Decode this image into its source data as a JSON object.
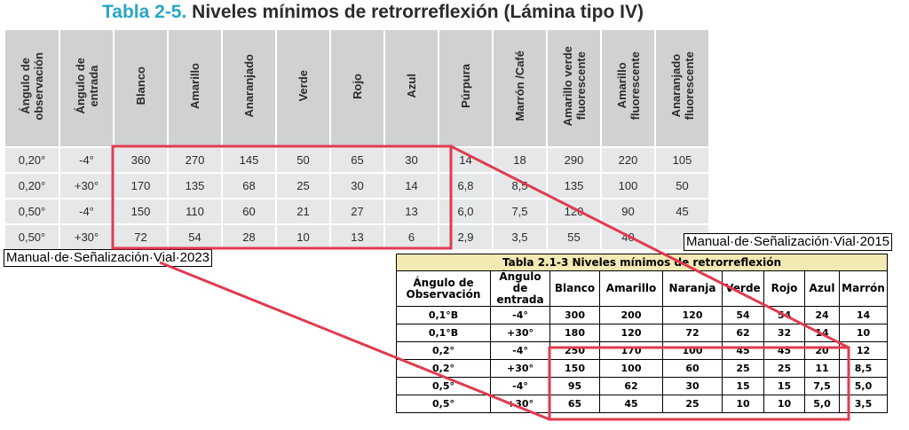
{
  "title": {
    "number": "Tabla 2-5.",
    "text": "Niveles mínimos de retrorreflexión (Lámina tipo IV)"
  },
  "table_2023": {
    "headers": [
      "Ángulo de\nobservación",
      "Ángulo de\nentrada",
      "Blanco",
      "Amarillo",
      "Anaranjado",
      "Verde",
      "Rojo",
      "Azul",
      "Púrpura",
      "Marrón /Café",
      "Amarillo verde\nfluorescente",
      "Amarillo\nfluorescente",
      "Anaranjado\nfluorescente"
    ],
    "rows": [
      [
        "0,20°",
        "-4°",
        "360",
        "270",
        "145",
        "50",
        "65",
        "30",
        "14",
        "18",
        "290",
        "220",
        "105"
      ],
      [
        "0,20°",
        "+30°",
        "170",
        "135",
        "68",
        "25",
        "30",
        "14",
        "6,8",
        "8,5",
        "135",
        "100",
        "50"
      ],
      [
        "0,50°",
        "-4°",
        "150",
        "110",
        "60",
        "21",
        "27",
        "13",
        "6,0",
        "7,5",
        "120",
        "90",
        "45"
      ],
      [
        "0,50°",
        "+30°",
        "72",
        "54",
        "28",
        "10",
        "13",
        "6",
        "2,9",
        "3,5",
        "55",
        "40",
        ""
      ]
    ]
  },
  "label_2023": "Manual·de·Señalización·Vial·2023",
  "label_2015": "Manual·de·Señalización·Vial·2015",
  "table_2015": {
    "caption": "Tabla 2.1-3 Niveles mínimos de retrorreflexión",
    "headers": [
      "Ángulo de\nObservación",
      "Ángulo\nde\nentrada",
      "Blanco",
      "Amarillo",
      "Naranja",
      "Verde",
      "Rojo",
      "Azul",
      "Marrón"
    ],
    "rows": [
      [
        "0,1°B",
        "-4°",
        "300",
        "200",
        "120",
        "54",
        "54",
        "24",
        "14"
      ],
      [
        "0,1°B",
        "+30°",
        "180",
        "120",
        "72",
        "62",
        "32",
        "14",
        "10"
      ],
      [
        "0,2°",
        "-4°",
        "250",
        "170",
        "100",
        "45",
        "45",
        "20",
        "12"
      ],
      [
        "0,2°",
        "+30°",
        "150",
        "100",
        "60",
        "25",
        "25",
        "11",
        "8,5"
      ],
      [
        "0,5°",
        "-4°",
        "95",
        "62",
        "30",
        "15",
        "15",
        "7,5",
        "5,0"
      ],
      [
        "0,5°",
        "+30°",
        "65",
        "45",
        "25",
        "10",
        "10",
        "5,0",
        "3,5"
      ]
    ]
  },
  "highlight_color": "#e03b50"
}
